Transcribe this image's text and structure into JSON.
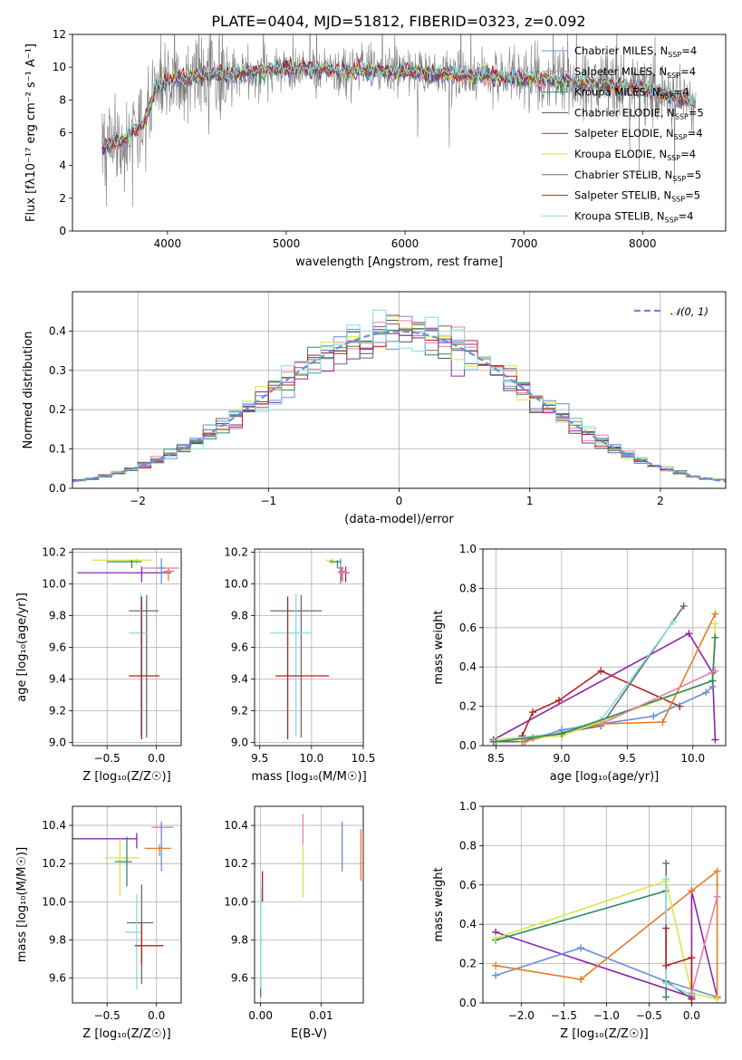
{
  "title": "PLATE=0404, MJD=51812, FIBERID=0323, z=0.092",
  "colors": {
    "chabrier_miles": "#6a8fd9",
    "salpeter_miles": "#ea7ea4",
    "kroupa_miles": "#2e8b57",
    "chabrier_elodie": "#555555",
    "salpeter_elodie": "#8e24aa",
    "kroupa_elodie": "#d7e64a",
    "chabrier_stelib": "#6b6b6b",
    "salpeter_stelib": "#b22222",
    "kroupa_stelib": "#86dde0",
    "data": "#7f7f7f",
    "orange": "#e87a26",
    "grid": "#b0b0b0"
  },
  "chart_data": [
    {
      "id": "spectrum",
      "type": "line",
      "title": "PLATE=0404, MJD=51812, FIBERID=0323, z=0.092",
      "xlabel": "wavelength [Angstrom, rest frame]",
      "ylabel": "Flux [fλ10⁻¹⁷ erg cm⁻² s⁻¹ A⁻¹]",
      "xlim": [
        3200,
        8700
      ],
      "ylim": [
        0,
        12
      ],
      "xticks": [
        4000,
        5000,
        6000,
        7000,
        8000
      ],
      "yticks": [
        0,
        2,
        4,
        6,
        8,
        10,
        12
      ],
      "grid": false,
      "legend_position": "upper-right",
      "series": [
        {
          "name": "Chabrier MILES, N_SSP=4"
        },
        {
          "name": "Salpeter MILES, N_SSP=4"
        },
        {
          "name": "Kroupa MILES, N_SSP=4"
        },
        {
          "name": "Chabrier ELODIE, N_SSP=5"
        },
        {
          "name": "Salpeter ELODIE, N_SSP=4"
        },
        {
          "name": "Kroupa ELODIE, N_SSP=4"
        },
        {
          "name": "Chabrier STELIB, N_SSP=5"
        },
        {
          "name": "Salpeter STELIB, N_SSP=5"
        },
        {
          "name": "Kroupa STELIB, N_SSP=4"
        }
      ],
      "spectrum_shape": {
        "x": [
          3450,
          3600,
          3800,
          3900,
          4000,
          4200,
          4500,
          5000,
          5500,
          6000,
          6500,
          7000,
          7200,
          7500,
          8000,
          8300,
          8450
        ],
        "y": [
          5.2,
          5.4,
          6.5,
          8.8,
          9.2,
          9.4,
          9.6,
          9.9,
          9.8,
          9.7,
          9.5,
          9.3,
          9.2,
          9.0,
          8.7,
          8.1,
          7.8
        ]
      }
    },
    {
      "id": "residuals",
      "type": "histogram",
      "xlabel": "(data-model)/error",
      "ylabel": "Normed distribution",
      "xlim": [
        -2.5,
        2.5
      ],
      "ylim": [
        0,
        0.5
      ],
      "xticks": [
        -2,
        -1,
        0,
        1,
        2
      ],
      "yticks": [
        0.0,
        0.1,
        0.2,
        0.3,
        0.4
      ],
      "grid": true,
      "legend_position": "upper-right",
      "reference_curve": {
        "name": "𝒩(0, 1)",
        "type": "normal",
        "mean": 0,
        "sigma": 1
      },
      "bins": [
        -2.5,
        2.5,
        50
      ]
    },
    {
      "id": "age_vs_Z",
      "type": "errorbar",
      "xlabel": "Z [log₁₀(Z/Z☉)]",
      "ylabel": "age  [log₁₀(age/yr)]",
      "xlim": [
        -0.85,
        0.25
      ],
      "ylim": [
        8.98,
        10.22
      ],
      "xticks": [
        -0.5,
        0.0
      ],
      "yticks": [
        9.0,
        9.2,
        9.4,
        9.6,
        9.8,
        10.0,
        10.2
      ],
      "grid": true,
      "points": [
        {
          "series": "Kroupa ELODIE",
          "x": -0.2,
          "xerr": [
            0.45,
            0.15
          ],
          "y": 10.15,
          "yerr": [
            0.03,
            0.01
          ]
        },
        {
          "series": "Kroupa MILES",
          "x": -0.25,
          "xerr": [
            0.25,
            0.1
          ],
          "y": 10.14,
          "yerr": [
            0.04,
            0.01
          ]
        },
        {
          "series": "Salpeter ELODIE",
          "x": -0.15,
          "xerr": [
            0.65,
            0.3
          ],
          "y": 10.07,
          "yerr": [
            0.06,
            0.04
          ]
        },
        {
          "series": "Salpeter MILES",
          "x": 0.05,
          "xerr": [
            0.2,
            0.18
          ],
          "y": 10.1,
          "yerr": [
            0.02,
            0.01
          ]
        },
        {
          "series": "Chabrier MILES",
          "x": 0.05,
          "xerr": [
            0.05,
            0.05
          ],
          "y": 10.1,
          "yerr": [
            0.1,
            0.06
          ]
        },
        {
          "series": "orange",
          "x": 0.12,
          "xerr": [
            0.05,
            0.06
          ],
          "y": 10.08,
          "yerr": [
            0.06,
            0.02
          ]
        },
        {
          "series": "Chabrier STELIB",
          "x": -0.1,
          "xerr": [
            0.18,
            0.12
          ],
          "y": 9.83,
          "yerr": [
            0.8,
            0.1
          ]
        },
        {
          "series": "Kroupa STELIB",
          "x": -0.16,
          "xerr": [
            0.12,
            0.06
          ],
          "y": 9.69,
          "yerr": [
            0.65,
            0.25
          ]
        },
        {
          "series": "Salpeter STELIB",
          "x": -0.15,
          "xerr": [
            0.13,
            0.18
          ],
          "y": 9.42,
          "yerr": [
            0.4,
            0.5
          ]
        }
      ]
    },
    {
      "id": "age_vs_mass",
      "type": "errorbar",
      "xlabel": "mass [log₁₀(M/M☉)]",
      "ylabel": "",
      "xlim": [
        9.45,
        10.5
      ],
      "ylim": [
        8.98,
        10.22
      ],
      "xticks": [
        9.5,
        10.0,
        10.5
      ],
      "yticks": [
        9.0,
        9.2,
        9.4,
        9.6,
        9.8,
        10.0,
        10.2
      ],
      "grid": true,
      "points": [
        {
          "series": "Kroupa ELODIE",
          "x": 10.2,
          "xerr": [
            0.06,
            0.02
          ],
          "y": 10.15,
          "yerr": [
            0.03,
            0.01
          ]
        },
        {
          "series": "Kroupa MILES",
          "x": 10.25,
          "xerr": [
            0.08,
            0.04
          ],
          "y": 10.14,
          "yerr": [
            0.04,
            0.01
          ]
        },
        {
          "series": "Salpeter ELODIE",
          "x": 10.33,
          "xerr": [
            0.05,
            0.04
          ],
          "y": 10.07,
          "yerr": [
            0.06,
            0.04
          ]
        },
        {
          "series": "Salpeter MILES",
          "x": 10.3,
          "xerr": [
            0.05,
            0.07
          ],
          "y": 10.07,
          "yerr": [
            0.06,
            0.04
          ]
        },
        {
          "series": "Chabrier MILES",
          "x": 10.28,
          "xerr": [
            0.03,
            0.03
          ],
          "y": 10.1,
          "yerr": [
            0.1,
            0.06
          ]
        },
        {
          "series": "orange",
          "x": 10.29,
          "xerr": [
            0.03,
            0.05
          ],
          "y": 10.08,
          "yerr": [
            0.06,
            0.02
          ]
        },
        {
          "series": "Chabrier STELIB",
          "x": 9.9,
          "xerr": [
            0.3,
            0.2
          ],
          "y": 9.83,
          "yerr": [
            0.8,
            0.1
          ]
        },
        {
          "series": "Kroupa STELIB",
          "x": 9.85,
          "xerr": [
            0.25,
            0.15
          ],
          "y": 9.69,
          "yerr": [
            0.65,
            0.25
          ]
        },
        {
          "series": "Salpeter STELIB",
          "x": 9.77,
          "xerr": [
            0.12,
            0.4
          ],
          "y": 9.42,
          "yerr": [
            0.4,
            0.5
          ]
        }
      ]
    },
    {
      "id": "weight_vs_age",
      "type": "line",
      "xlabel": "age  [log₁₀(age/yr)]",
      "ylabel": "mass weight",
      "xlim": [
        8.4,
        10.25
      ],
      "ylim": [
        0,
        1
      ],
      "xticks": [
        8.5,
        9.0,
        9.5,
        10.0
      ],
      "yticks": [
        0.0,
        0.2,
        0.4,
        0.6,
        0.8,
        1.0
      ],
      "grid": true,
      "series": [
        {
          "series": "Salpeter ELODIE",
          "points": [
            [
              8.48,
              0.03
            ],
            [
              9.97,
              0.57
            ],
            [
              10.15,
              0.37
            ],
            [
              10.17,
              0.03
            ]
          ]
        },
        {
          "series": "Salpeter STELIB",
          "points": [
            [
              8.7,
              0.05
            ],
            [
              8.78,
              0.17
            ],
            [
              8.98,
              0.23
            ],
            [
              9.3,
              0.38
            ],
            [
              9.9,
              0.2
            ]
          ]
        },
        {
          "series": "Chabrier STELIB",
          "points": [
            [
              8.48,
              0.02
            ],
            [
              8.7,
              0.02
            ],
            [
              8.78,
              0.04
            ],
            [
              9.3,
              0.1
            ],
            [
              9.93,
              0.71
            ]
          ]
        },
        {
          "series": "Kroupa STELIB",
          "points": [
            [
              8.5,
              0.03
            ],
            [
              8.95,
              0.06
            ],
            [
              9.3,
              0.13
            ],
            [
              9.85,
              0.63
            ]
          ]
        },
        {
          "series": "Chabrier MILES",
          "points": [
            [
              8.72,
              0.02
            ],
            [
              9.0,
              0.08
            ],
            [
              9.3,
              0.11
            ],
            [
              9.7,
              0.15
            ],
            [
              10.1,
              0.27
            ],
            [
              10.15,
              0.3
            ]
          ]
        },
        {
          "series": "orange",
          "points": [
            [
              8.7,
              0.02
            ],
            [
              9.3,
              0.11
            ],
            [
              9.77,
              0.12
            ],
            [
              10.17,
              0.67
            ]
          ]
        },
        {
          "series": "Kroupa ELODIE",
          "points": [
            [
              8.5,
              0.03
            ],
            [
              9.0,
              0.05
            ],
            [
              10.15,
              0.33
            ],
            [
              10.17,
              0.62
            ]
          ]
        },
        {
          "series": "Kroupa MILES",
          "points": [
            [
              8.5,
              0.02
            ],
            [
              9.0,
              0.06
            ],
            [
              10.15,
              0.33
            ],
            [
              10.17,
              0.55
            ]
          ]
        },
        {
          "series": "Salpeter MILES",
          "points": [
            [
              9.3,
              0.11
            ],
            [
              10.17,
              0.38
            ]
          ]
        }
      ]
    },
    {
      "id": "mass_vs_Z",
      "type": "errorbar",
      "xlabel": "Z [log₁₀(Z/Z☉)]",
      "ylabel": "mass [log₁₀(M/M☉)]",
      "xlim": [
        -0.85,
        0.25
      ],
      "ylim": [
        9.47,
        10.5
      ],
      "xticks": [
        -0.5,
        0.0
      ],
      "yticks": [
        9.6,
        9.8,
        10.0,
        10.2,
        10.4
      ],
      "grid": true,
      "points": [
        {
          "series": "Salpeter ELODIE",
          "x": -0.2,
          "xerr": [
            0.65,
            0.0
          ],
          "y": 10.33,
          "yerr": [
            0.05,
            0.03
          ]
        },
        {
          "series": "Salpeter MILES",
          "x": 0.05,
          "xerr": [
            0.1,
            0.12
          ],
          "y": 10.39,
          "yerr": [
            0.05,
            0.03
          ]
        },
        {
          "series": "Chabrier MILES",
          "x": 0.05,
          "xerr": [
            0.03,
            0.03
          ],
          "y": 10.28,
          "yerr": [
            0.12,
            0.14
          ]
        },
        {
          "series": "orange",
          "x": 0.03,
          "xerr": [
            0.15,
            0.12
          ],
          "y": 10.28,
          "yerr": [
            0.04,
            0.02
          ]
        },
        {
          "series": "Kroupa ELODIE",
          "x": -0.37,
          "xerr": [
            0.15,
            0.2
          ],
          "y": 10.23,
          "yerr": [
            0.2,
            0.1
          ]
        },
        {
          "series": "Kroupa MILES",
          "x": -0.3,
          "xerr": [
            0.12,
            0.05
          ],
          "y": 10.21,
          "yerr": [
            0.13,
            0.13
          ]
        },
        {
          "series": "Chabrier STELIB",
          "x": -0.15,
          "xerr": [
            0.15,
            0.12
          ],
          "y": 9.89,
          "yerr": [
            0.32,
            0.2
          ]
        },
        {
          "series": "Kroupa STELIB",
          "x": -0.2,
          "xerr": [
            0.12,
            0.05
          ],
          "y": 9.84,
          "yerr": [
            0.3,
            0.2
          ]
        },
        {
          "series": "Salpeter STELIB",
          "x": -0.15,
          "xerr": [
            0.07,
            0.22
          ],
          "y": 9.77,
          "yerr": [
            0.1,
            0.12
          ]
        }
      ]
    },
    {
      "id": "mass_vs_ebv",
      "type": "errorbar",
      "xlabel": "E(B-V)",
      "ylabel": "",
      "xlim": [
        -0.001,
        0.017
      ],
      "ylim": [
        9.47,
        10.5
      ],
      "xticks": [
        0.0,
        0.01
      ],
      "yticks": [
        9.6,
        9.8,
        10.0,
        10.2,
        10.4
      ],
      "grid": true,
      "points": [
        {
          "series": "Salpeter MILES",
          "x": 0.007,
          "xerr": [
            0,
            0
          ],
          "y": 10.36,
          "yerr": [
            0.07,
            0.1
          ]
        },
        {
          "series": "Kroupa ELODIE",
          "x": 0.007,
          "xerr": [
            0,
            0
          ],
          "y": 10.15,
          "yerr": [
            0.13,
            0.15
          ]
        },
        {
          "series": "Chabrier MILES",
          "x": 0.0135,
          "xerr": [
            0,
            0
          ],
          "y": 10.29,
          "yerr": [
            0.13,
            0.13
          ]
        },
        {
          "series": "orange",
          "x": 0.0166,
          "xerr": [
            0,
            0
          ],
          "y": 10.25,
          "yerr": [
            0.14,
            0.13
          ]
        },
        {
          "series": "Salpeter STELIB",
          "x": 0.0003,
          "xerr": [
            0,
            0
          ],
          "y": 10.1,
          "yerr": [
            0.1,
            0.06
          ]
        },
        {
          "series": "Chabrier STELIB",
          "x": 0.0,
          "xerr": [
            0,
            0
          ],
          "y": 9.75,
          "yerr": [
            0.25,
            0.3
          ]
        },
        {
          "series": "Kroupa STELIB",
          "x": 0.0,
          "xerr": [
            0,
            0
          ],
          "y": 9.8,
          "yerr": [
            0.25,
            0.28
          ]
        }
      ]
    },
    {
      "id": "weight_vs_Z",
      "type": "line",
      "xlabel": "Z [log₁₀(Z/Z☉)]",
      "ylabel": "mass weight",
      "xlim": [
        -2.45,
        0.4
      ],
      "ylim": [
        0,
        1
      ],
      "xticks": [
        -2.0,
        -1.5,
        -1.0,
        -0.5,
        0.0
      ],
      "yticks": [
        0.0,
        0.2,
        0.4,
        0.6,
        0.8,
        1.0
      ],
      "grid": true,
      "series": [
        {
          "series": "Salpeter ELODIE",
          "points": [
            [
              -2.3,
              0.36
            ],
            [
              0.0,
              0.03
            ],
            [
              0.0,
              0.57
            ],
            [
              0.3,
              0.03
            ]
          ]
        },
        {
          "series": "Chabrier MILES",
          "points": [
            [
              -2.3,
              0.14
            ],
            [
              -1.3,
              0.28
            ],
            [
              -0.3,
              0.11
            ],
            [
              0.3,
              0.03
            ]
          ]
        },
        {
          "series": "orange",
          "points": [
            [
              -2.3,
              0.19
            ],
            [
              -1.3,
              0.12
            ],
            [
              0.0,
              0.57
            ],
            [
              0.3,
              0.67
            ],
            [
              0.3,
              0.03
            ]
          ]
        },
        {
          "series": "Kroupa MILES",
          "points": [
            [
              -2.3,
              0.32
            ],
            [
              -0.3,
              0.57
            ],
            [
              -0.3,
              0.03
            ]
          ]
        },
        {
          "series": "Kroupa ELODIE",
          "points": [
            [
              -2.3,
              0.33
            ],
            [
              -0.3,
              0.62
            ],
            [
              0.0,
              0.05
            ],
            [
              0.3,
              0.02
            ]
          ]
        },
        {
          "series": "Chabrier STELIB",
          "points": [
            [
              -0.3,
              0.71
            ],
            [
              -0.3,
              0.11
            ],
            [
              0.0,
              0.02
            ]
          ]
        },
        {
          "series": "Kroupa STELIB",
          "points": [
            [
              -0.3,
              0.63
            ],
            [
              -0.3,
              0.1
            ],
            [
              0.0,
              0.04
            ]
          ]
        },
        {
          "series": "Salpeter STELIB",
          "points": [
            [
              -0.3,
              0.38
            ],
            [
              -0.3,
              0.19
            ],
            [
              0.0,
              0.23
            ],
            [
              0.0,
              0.02
            ]
          ]
        },
        {
          "series": "Salpeter MILES",
          "points": [
            [
              0.0,
              0.05
            ],
            [
              0.3,
              0.54
            ]
          ]
        }
      ]
    }
  ]
}
